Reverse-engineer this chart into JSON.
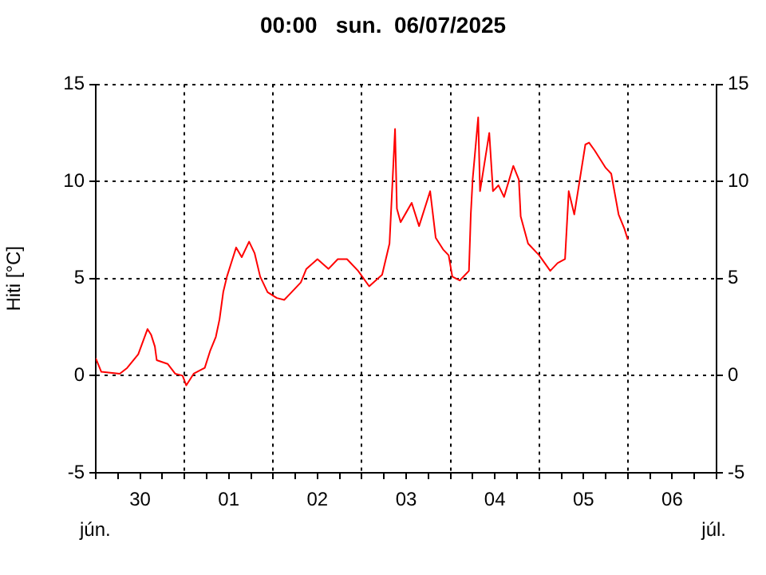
{
  "chart_data": {
    "type": "line",
    "title": "00:00   sun.  06/07/2025",
    "ylabel": "Hiti [°C]",
    "annotations": [
      "jún.",
      "júl."
    ],
    "x": [
      "2025-06-30T00:00",
      "2025-06-30T01:30",
      "2025-06-30T06:30",
      "2025-06-30T08:30",
      "2025-06-30T11:30",
      "2025-06-30T14:00",
      "2025-06-30T15:00",
      "2025-06-30T16:00",
      "2025-06-30T16:30",
      "2025-06-30T19:30",
      "2025-06-30T21:30",
      "2025-06-30T23:30",
      "2025-07-01T00:30",
      "2025-07-01T02:30",
      "2025-07-01T05:30",
      "2025-07-01T07:00",
      "2025-07-01T08:30",
      "2025-07-01T09:30",
      "2025-07-01T10:30",
      "2025-07-01T11:30",
      "2025-07-01T12:30",
      "2025-07-01T14:00",
      "2025-07-01T15:30",
      "2025-07-01T17:30",
      "2025-07-01T19:00",
      "2025-07-01T20:30",
      "2025-07-01T22:30",
      "2025-07-02T01:00",
      "2025-07-02T03:00",
      "2025-07-02T05:00",
      "2025-07-02T07:30",
      "2025-07-02T09:00",
      "2025-07-02T12:00",
      "2025-07-02T15:00",
      "2025-07-02T17:30",
      "2025-07-02T20:00",
      "2025-07-02T23:00",
      "2025-07-03T02:00",
      "2025-07-03T05:30",
      "2025-07-03T07:30",
      "2025-07-03T09:00",
      "2025-07-03T09:30",
      "2025-07-03T10:30",
      "2025-07-03T13:30",
      "2025-07-03T15:30",
      "2025-07-03T18:30",
      "2025-07-03T20:00",
      "2025-07-03T22:00",
      "2025-07-03T23:30",
      "2025-07-04T00:30",
      "2025-07-04T02:30",
      "2025-07-04T05:00",
      "2025-07-04T05:30",
      "2025-07-04T06:00",
      "2025-07-04T07:30",
      "2025-07-04T08:00",
      "2025-07-04T09:30",
      "2025-07-04T10:30",
      "2025-07-04T11:30",
      "2025-07-04T13:00",
      "2025-07-04T14:30",
      "2025-07-04T17:00",
      "2025-07-04T18:30",
      "2025-07-04T19:00",
      "2025-07-04T21:00",
      "2025-07-05T00:00",
      "2025-07-05T03:00",
      "2025-07-05T05:00",
      "2025-07-05T07:00",
      "2025-07-05T08:00",
      "2025-07-05T09:30",
      "2025-07-05T10:30",
      "2025-07-05T12:30",
      "2025-07-05T13:30",
      "2025-07-05T15:00",
      "2025-07-05T18:00",
      "2025-07-05T19:30",
      "2025-07-05T21:30",
      "2025-07-05T23:00",
      "2025-07-06T00:00"
    ],
    "series": [
      {
        "color": "#ff0000",
        "values": [
          0.9,
          0.2,
          0.1,
          0.4,
          1.1,
          2.4,
          2.1,
          1.5,
          0.8,
          0.6,
          0.1,
          0.0,
          -0.5,
          0.1,
          0.4,
          1.3,
          2.0,
          2.9,
          4.3,
          5.1,
          5.7,
          6.6,
          6.1,
          6.9,
          6.3,
          5.1,
          4.3,
          4.0,
          3.9,
          4.3,
          4.8,
          5.5,
          6.0,
          5.5,
          6.0,
          6.0,
          5.4,
          4.6,
          5.2,
          6.8,
          12.7,
          8.6,
          7.9,
          8.9,
          7.7,
          9.5,
          7.1,
          6.5,
          6.2,
          5.1,
          4.9,
          5.4,
          8.3,
          10.1,
          13.3,
          9.5,
          11.3,
          12.5,
          9.5,
          9.8,
          9.2,
          10.8,
          10.1,
          8.2,
          6.8,
          6.2,
          5.4,
          5.8,
          6.0,
          9.5,
          8.3,
          9.5,
          11.9,
          12.0,
          11.6,
          10.7,
          10.4,
          8.3,
          7.6,
          7.0
        ]
      }
    ],
    "xlim": [
      "2025-06-30T00:00",
      "2025-07-07T00:00"
    ],
    "xticks": [
      {
        "value": "2025-06-30T00:00",
        "label": null
      },
      {
        "value": "2025-06-30T06:00",
        "label": null
      },
      {
        "value": "2025-06-30T12:00",
        "label": "30"
      },
      {
        "value": "2025-06-30T18:00",
        "label": null
      },
      {
        "value": "2025-07-01T00:00",
        "label": null
      },
      {
        "value": "2025-07-01T06:00",
        "label": null
      },
      {
        "value": "2025-07-01T12:00",
        "label": "01"
      },
      {
        "value": "2025-07-01T18:00",
        "label": null
      },
      {
        "value": "2025-07-02T00:00",
        "label": null
      },
      {
        "value": "2025-07-02T06:00",
        "label": null
      },
      {
        "value": "2025-07-02T12:00",
        "label": "02"
      },
      {
        "value": "2025-07-02T18:00",
        "label": null
      },
      {
        "value": "2025-07-03T00:00",
        "label": null
      },
      {
        "value": "2025-07-03T06:00",
        "label": null
      },
      {
        "value": "2025-07-03T12:00",
        "label": "03"
      },
      {
        "value": "2025-07-03T18:00",
        "label": null
      },
      {
        "value": "2025-07-04T00:00",
        "label": null
      },
      {
        "value": "2025-07-04T06:00",
        "label": null
      },
      {
        "value": "2025-07-04T12:00",
        "label": "04"
      },
      {
        "value": "2025-07-04T18:00",
        "label": null
      },
      {
        "value": "2025-07-05T00:00",
        "label": null
      },
      {
        "value": "2025-07-05T06:00",
        "label": null
      },
      {
        "value": "2025-07-05T12:00",
        "label": "05"
      },
      {
        "value": "2025-07-05T18:00",
        "label": null
      },
      {
        "value": "2025-07-06T00:00",
        "label": null
      },
      {
        "value": "2025-07-06T06:00",
        "label": null
      },
      {
        "value": "2025-07-06T12:00",
        "label": "06"
      },
      {
        "value": "2025-07-06T18:00",
        "label": null
      },
      {
        "value": "2025-07-07T00:00",
        "label": null
      }
    ],
    "ylim": [
      -5,
      15
    ],
    "yticks": [
      -5,
      0,
      5,
      10,
      15
    ],
    "y2lim": [
      -5,
      15
    ],
    "y2ticks": [
      -5,
      0,
      5,
      10,
      15
    ],
    "grid": true,
    "legend": false,
    "marker": "none",
    "line_style": "solid"
  }
}
